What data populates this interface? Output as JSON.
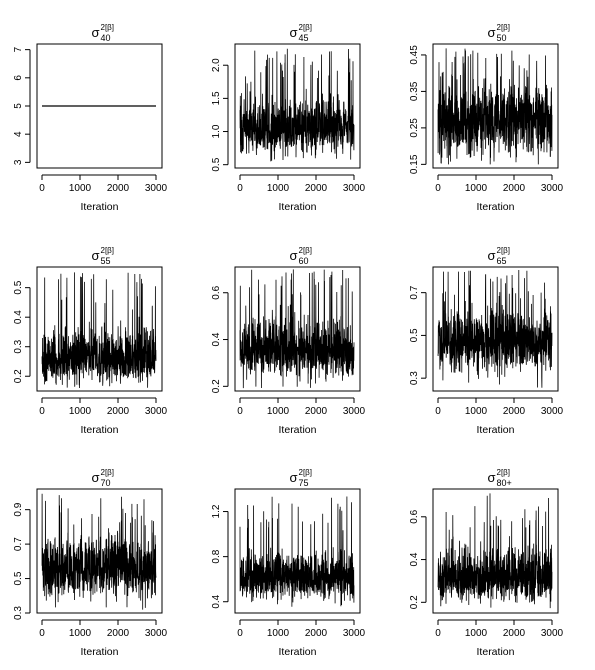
{
  "figure": {
    "common_xlabel": "Iteration",
    "x_ticks": [
      "0",
      "1000",
      "2000",
      "3000"
    ],
    "title_symbol": "σ",
    "title_superscript": "2[β]"
  },
  "chart_data": [
    {
      "type": "line",
      "title_subscript": "40",
      "xlabel": "Iteration",
      "xlim": [
        0,
        3000
      ],
      "ylim": [
        2.8,
        7.2
      ],
      "y_ticks": [
        "3",
        "4",
        "5",
        "6",
        "7"
      ],
      "y_tick_values": [
        3,
        4,
        5,
        6,
        7
      ],
      "n_iterations": 3000,
      "series": [
        {
          "constant": 5
        }
      ]
    },
    {
      "type": "line",
      "title_subscript": "45",
      "xlabel": "Iteration",
      "xlim": [
        0,
        3000
      ],
      "ylim": [
        0.45,
        2.32
      ],
      "y_ticks": [
        "0.5",
        "1.0",
        "1.5",
        "2.0"
      ],
      "y_tick_values": [
        0.5,
        1.0,
        1.5,
        2.0
      ],
      "n_iterations": 3000,
      "series": [
        {
          "mean": 1.05,
          "typical_min": 0.65,
          "typical_max": 1.55,
          "min": 0.55,
          "max": 2.25
        }
      ]
    },
    {
      "type": "line",
      "title_subscript": "50",
      "xlabel": "Iteration",
      "xlim": [
        0,
        3000
      ],
      "ylim": [
        0.14,
        0.48
      ],
      "y_ticks": [
        "0.15",
        "0.25",
        "0.35",
        "0.45"
      ],
      "y_tick_values": [
        0.15,
        0.25,
        0.35,
        0.45
      ],
      "n_iterations": 3000,
      "series": [
        {
          "mean": 0.27,
          "typical_min": 0.17,
          "typical_max": 0.37,
          "min": 0.15,
          "max": 0.47
        }
      ]
    },
    {
      "type": "line",
      "title_subscript": "55",
      "xlabel": "Iteration",
      "xlim": [
        0,
        3000
      ],
      "ylim": [
        0.15,
        0.57
      ],
      "y_ticks": [
        "0.2",
        "0.3",
        "0.4",
        "0.5"
      ],
      "y_tick_values": [
        0.2,
        0.3,
        0.4,
        0.5
      ],
      "n_iterations": 3000,
      "series": [
        {
          "mean": 0.26,
          "typical_min": 0.18,
          "typical_max": 0.37,
          "min": 0.16,
          "max": 0.56
        }
      ]
    },
    {
      "type": "line",
      "title_subscript": "60",
      "xlabel": "Iteration",
      "xlim": [
        0,
        3000
      ],
      "ylim": [
        0.18,
        0.71
      ],
      "y_ticks": [
        "0.2",
        "0.4",
        "0.6"
      ],
      "y_tick_values": [
        0.2,
        0.4,
        0.6
      ],
      "n_iterations": 3000,
      "series": [
        {
          "mean": 0.35,
          "typical_min": 0.24,
          "typical_max": 0.5,
          "min": 0.19,
          "max": 0.7
        }
      ]
    },
    {
      "type": "line",
      "title_subscript": "65",
      "xlabel": "Iteration",
      "xlim": [
        0,
        3000
      ],
      "ylim": [
        0.24,
        0.82
      ],
      "y_ticks": [
        "0.3",
        "0.5",
        "0.7"
      ],
      "y_tick_values": [
        0.3,
        0.5,
        0.7
      ],
      "n_iterations": 3000,
      "series": [
        {
          "mean": 0.47,
          "typical_min": 0.33,
          "typical_max": 0.63,
          "min": 0.25,
          "max": 0.81
        }
      ]
    },
    {
      "type": "line",
      "title_subscript": "70",
      "xlabel": "Iteration",
      "xlim": [
        0,
        3000
      ],
      "ylim": [
        0.3,
        1.02
      ],
      "y_ticks": [
        "0.3",
        "0.5",
        "0.7",
        "0.9"
      ],
      "y_tick_values": [
        0.3,
        0.5,
        0.7,
        0.9
      ],
      "n_iterations": 3000,
      "series": [
        {
          "mean": 0.55,
          "typical_min": 0.38,
          "typical_max": 0.75,
          "min": 0.32,
          "max": 1.0
        }
      ]
    },
    {
      "type": "line",
      "title_subscript": "75",
      "xlabel": "Iteration",
      "xlim": [
        0,
        3000
      ],
      "ylim": [
        0.3,
        1.4
      ],
      "y_ticks": [
        "0.4",
        "0.8",
        "1.2"
      ],
      "y_tick_values": [
        0.4,
        0.8,
        1.2
      ],
      "n_iterations": 3000,
      "series": [
        {
          "mean": 0.6,
          "typical_min": 0.42,
          "typical_max": 0.85,
          "min": 0.35,
          "max": 1.35
        }
      ]
    },
    {
      "type": "line",
      "title_subscript": "80+",
      "xlabel": "Iteration",
      "xlim": [
        0,
        3000
      ],
      "ylim": [
        0.15,
        0.73
      ],
      "y_ticks": [
        "0.2",
        "0.4",
        "0.6"
      ],
      "y_tick_values": [
        0.2,
        0.4,
        0.6
      ],
      "n_iterations": 3000,
      "series": [
        {
          "mean": 0.31,
          "typical_min": 0.2,
          "typical_max": 0.47,
          "min": 0.17,
          "max": 0.72
        }
      ]
    }
  ]
}
